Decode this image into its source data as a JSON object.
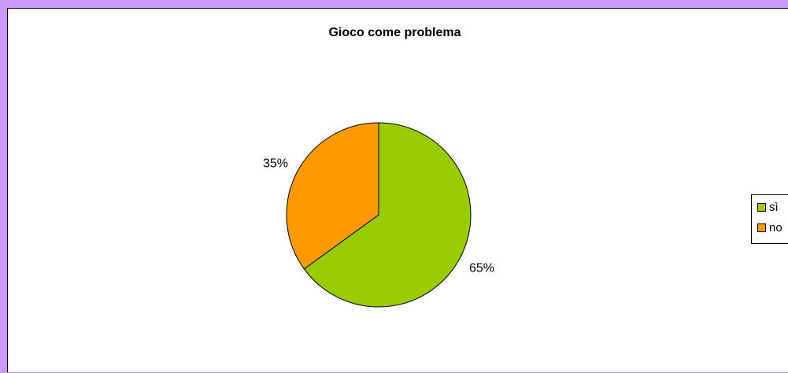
{
  "chart_data": {
    "type": "pie",
    "title": "Gioco come problema",
    "categories": [
      "sì",
      "no"
    ],
    "values": [
      65,
      35
    ],
    "data_labels": [
      "65%",
      "35%"
    ],
    "colors": [
      "#99CC00",
      "#FF9900"
    ],
    "legend_position": "right"
  },
  "colors": {
    "background": "#CC99FF",
    "plot_background": "#FFFFFF"
  }
}
